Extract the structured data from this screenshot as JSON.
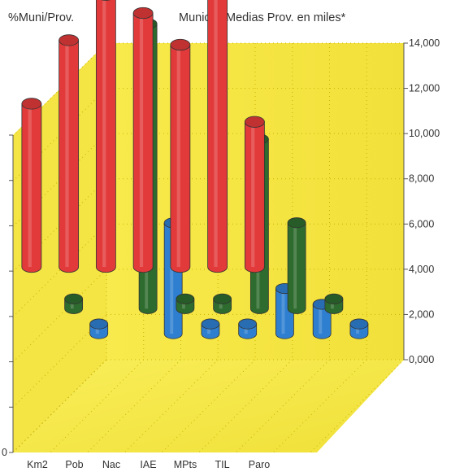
{
  "chart_data": {
    "type": "bar",
    "style": "3d-cylinder",
    "title_left": "%Muni/Prov.",
    "title_right": "Munic. y Medias Prov. en miles*",
    "categories": [
      "Km2",
      "Pob",
      "Nac",
      "IAE",
      "MPts",
      "TIL",
      "Paro",
      ""
    ],
    "left_axis": {
      "ticks": [
        "",
        "",
        "",
        "",
        "",
        "",
        "",
        "0"
      ]
    },
    "right_axis": {
      "ylim": [
        0,
        14000
      ],
      "ticks": [
        "0,000",
        "2,000",
        "4,000",
        "6,000",
        "8,000",
        "10,000",
        "12,000",
        "14,000"
      ]
    },
    "series": [
      {
        "color": "#e23a3a",
        "axis": "left",
        "values": [
          0.72,
          1.0,
          1.2,
          1.12,
          0.98,
          1.22,
          0.64,
          null
        ]
      },
      {
        "color": "#2e6b2e",
        "axis": "right",
        "values": [
          0,
          null,
          12600,
          0,
          0,
          7500,
          3800,
          0
        ]
      },
      {
        "color": "#2f7fd0",
        "axis": "right",
        "values": [
          0,
          null,
          4900,
          0,
          0,
          2000,
          1300,
          0
        ]
      }
    ],
    "wall_color": "#f6e84a",
    "grid": true
  }
}
